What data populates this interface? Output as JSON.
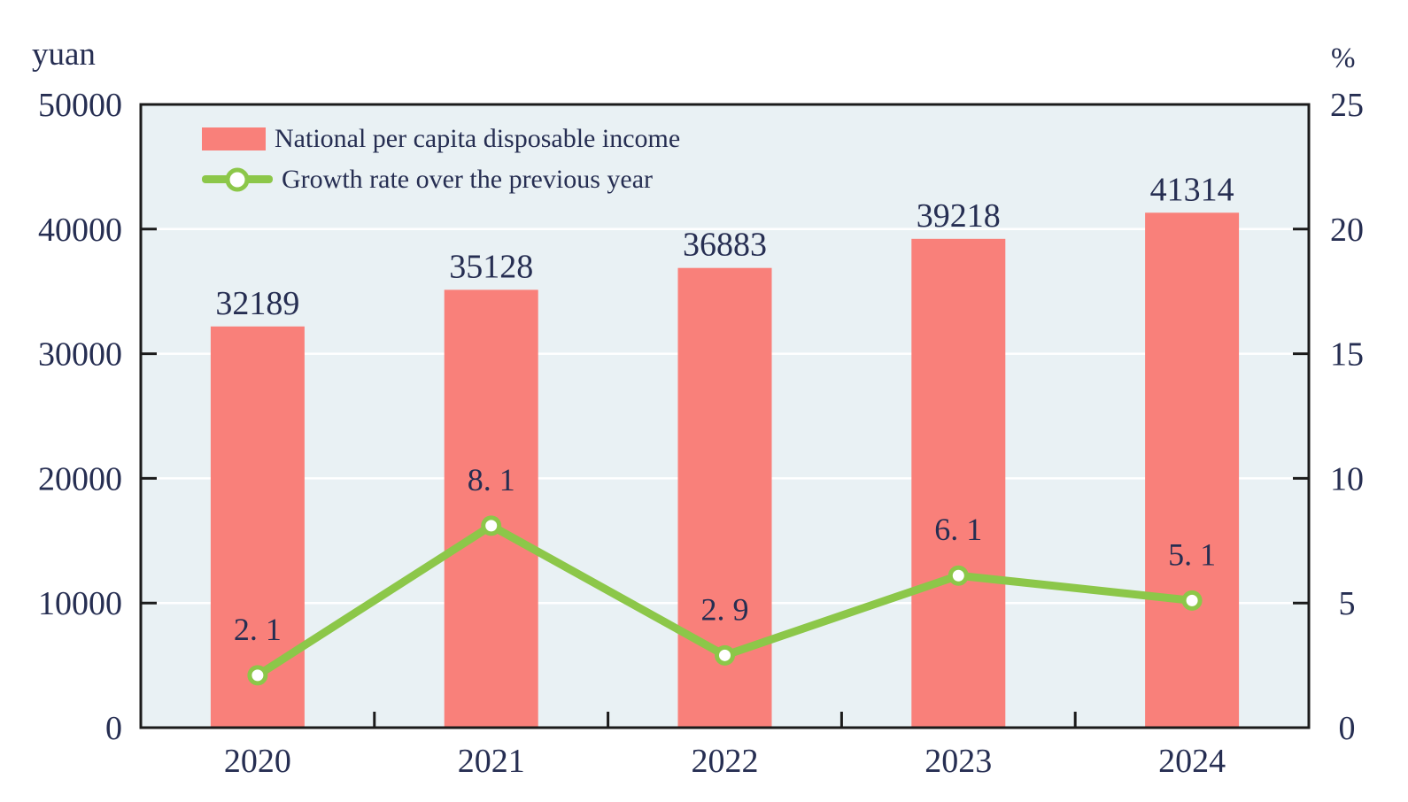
{
  "figure": {
    "background": "#FFFFFF"
  },
  "chart_data": {
    "type": "bar+line",
    "title": "",
    "categories": [
      "2020",
      "2021",
      "2022",
      "2023",
      "2024"
    ],
    "series": [
      {
        "name": "National per capita disposable income",
        "type": "bar",
        "axis": "left",
        "unit": "yuan",
        "color": "#F9807A",
        "values": [
          32189,
          35128,
          36883,
          39218,
          41314
        ],
        "value_labels": [
          "32189",
          "35128",
          "36883",
          "39218",
          "41314"
        ]
      },
      {
        "name": "Growth rate over the previous year",
        "type": "line",
        "axis": "right",
        "unit": "%",
        "color": "#8CC749",
        "marker": "white-circle",
        "values": [
          2.1,
          8.1,
          2.9,
          6.1,
          5.1
        ],
        "value_labels": [
          "2. 1",
          "8. 1",
          "2. 9",
          "6. 1",
          "5. 1"
        ]
      }
    ],
    "left_axis": {
      "title": "yuan",
      "min": 0,
      "max": 50000,
      "tick_step": 10000,
      "tick_labels": [
        "0",
        "10000",
        "20000",
        "30000",
        "40000",
        "50000"
      ]
    },
    "right_axis": {
      "title": "%",
      "min": 0,
      "max": 25,
      "tick_step": 5,
      "tick_labels": [
        "0",
        "5",
        "10",
        "15",
        "20",
        "25"
      ]
    },
    "legend_position": "top-left-inside",
    "grid": {
      "horizontal": true,
      "vertical": false
    },
    "colors": {
      "plot_background": "#E9F1F4",
      "gridline": "#FFFFFF",
      "frame": "#1B1B1B",
      "text": "#262E52"
    }
  }
}
